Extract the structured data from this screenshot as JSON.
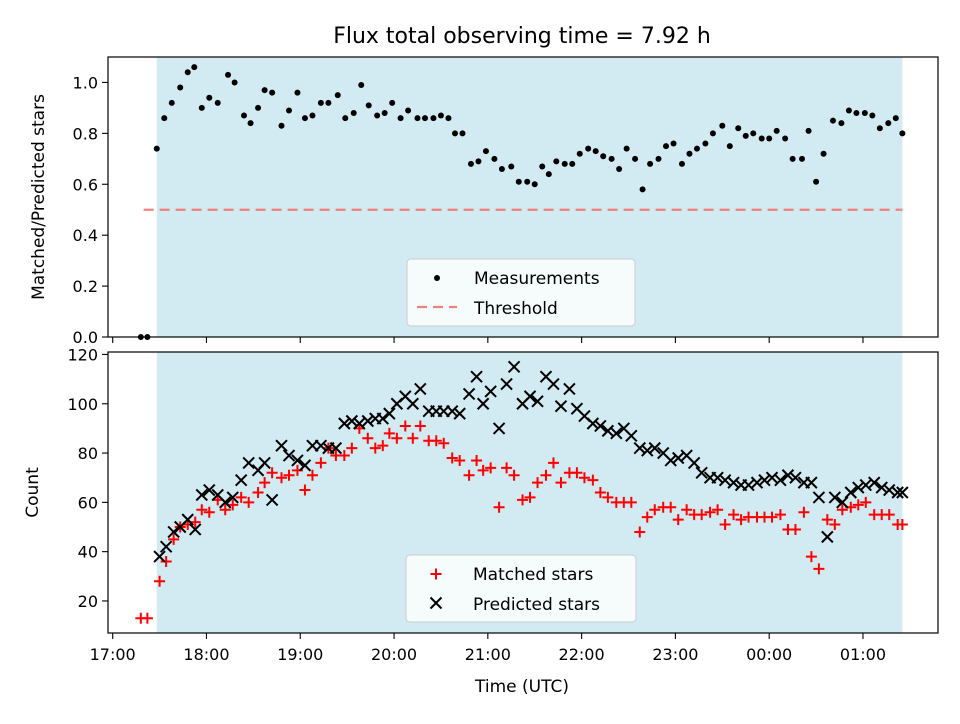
{
  "chart_data": {
    "title": "Flux total observing time = 7.92 h",
    "xlabel": "Time (UTC)",
    "x_ticks": [
      "17:00",
      "18:00",
      "19:00",
      "20:00",
      "21:00",
      "22:00",
      "23:00",
      "00:00",
      "01:00"
    ],
    "x_range_hours": [
      16.95,
      25.8
    ],
    "shaded_region_hours": [
      17.47,
      25.42
    ],
    "colors": {
      "shade": "#add8e6",
      "threshold": "#f08080",
      "matched": "#ff0000",
      "predicted": "#000000",
      "measure": "#000000"
    },
    "panels": [
      {
        "type": "scatter",
        "ylabel": "Matched/Predicted stars",
        "ylim": [
          0,
          1.1
        ],
        "y_ticks": [
          "0.0",
          "0.2",
          "0.4",
          "0.6",
          "0.8",
          "1.0"
        ],
        "y_tick_values": [
          0,
          0.2,
          0.4,
          0.6,
          0.8,
          1.0
        ],
        "threshold": 0.5,
        "threshold_x": [
          17.33,
          25.42
        ],
        "legend": [
          "Measurements",
          "Threshold"
        ],
        "legend_position": "lower-center",
        "series": [
          {
            "name": "Measurements",
            "x": [
              17.3,
              17.37,
              17.47,
              17.55,
              17.63,
              17.72,
              17.8,
              17.87,
              17.95,
              18.03,
              18.12,
              18.23,
              18.3,
              18.4,
              18.47,
              18.55,
              18.62,
              18.7,
              18.8,
              18.88,
              18.97,
              19.05,
              19.13,
              19.22,
              19.3,
              19.4,
              19.48,
              19.57,
              19.65,
              19.73,
              19.82,
              19.9,
              19.98,
              20.07,
              20.15,
              20.25,
              20.33,
              20.42,
              20.5,
              20.58,
              20.65,
              20.73,
              20.82,
              20.9,
              20.98,
              21.07,
              21.15,
              21.25,
              21.33,
              21.42,
              21.5,
              21.58,
              21.65,
              21.73,
              21.82,
              21.9,
              21.98,
              22.07,
              22.15,
              22.23,
              22.32,
              22.4,
              22.48,
              22.57,
              22.65,
              22.73,
              22.82,
              22.9,
              22.98,
              23.07,
              23.15,
              23.23,
              23.32,
              23.4,
              23.5,
              23.58,
              23.67,
              23.75,
              23.83,
              23.92,
              24.0,
              24.08,
              24.17,
              24.25,
              24.35,
              24.42,
              24.5,
              24.58,
              24.68,
              24.77,
              24.85,
              24.93,
              25.02,
              25.1,
              25.18,
              25.27,
              25.35,
              25.42
            ],
            "y": [
              0.0,
              0.0,
              0.74,
              0.86,
              0.92,
              0.98,
              1.04,
              1.06,
              0.9,
              0.94,
              0.92,
              1.03,
              1.0,
              0.87,
              0.84,
              0.9,
              0.97,
              0.96,
              0.83,
              0.89,
              0.96,
              0.86,
              0.87,
              0.92,
              0.92,
              0.95,
              0.86,
              0.88,
              0.99,
              0.91,
              0.87,
              0.88,
              0.92,
              0.86,
              0.89,
              0.86,
              0.86,
              0.86,
              0.87,
              0.86,
              0.8,
              0.8,
              0.68,
              0.69,
              0.73,
              0.7,
              0.66,
              0.67,
              0.61,
              0.61,
              0.6,
              0.67,
              0.64,
              0.69,
              0.68,
              0.68,
              0.72,
              0.74,
              0.73,
              0.71,
              0.7,
              0.66,
              0.74,
              0.7,
              0.58,
              0.68,
              0.7,
              0.75,
              0.76,
              0.68,
              0.72,
              0.74,
              0.76,
              0.8,
              0.83,
              0.75,
              0.82,
              0.79,
              0.8,
              0.78,
              0.78,
              0.81,
              0.78,
              0.7,
              0.7,
              0.81,
              0.61,
              0.72,
              0.85,
              0.84,
              0.89,
              0.88,
              0.88,
              0.87,
              0.82,
              0.84,
              0.86,
              0.8
            ]
          }
        ]
      },
      {
        "type": "scatter",
        "ylabel": "Count",
        "ylim": [
          7,
          121
        ],
        "y_ticks": [
          "20",
          "40",
          "60",
          "80",
          "100",
          "120"
        ],
        "y_tick_values": [
          20,
          40,
          60,
          80,
          100,
          120
        ],
        "legend": [
          "Matched stars",
          "Predicted stars"
        ],
        "legend_position": "lower-center",
        "series": [
          {
            "name": "Matched stars",
            "x": [
              17.3,
              17.37,
              17.5,
              17.57,
              17.65,
              17.72,
              17.8,
              17.88,
              17.95,
              18.03,
              18.12,
              18.2,
              18.28,
              18.37,
              18.45,
              18.55,
              18.62,
              18.7,
              18.8,
              18.88,
              18.97,
              19.05,
              19.13,
              19.22,
              19.3,
              19.38,
              19.47,
              19.55,
              19.63,
              19.72,
              19.8,
              19.88,
              19.95,
              20.03,
              20.12,
              20.2,
              20.28,
              20.37,
              20.45,
              20.53,
              20.62,
              20.7,
              20.8,
              20.88,
              20.95,
              21.03,
              21.12,
              21.2,
              21.28,
              21.37,
              21.45,
              21.53,
              21.62,
              21.7,
              21.78,
              21.87,
              21.95,
              22.03,
              22.12,
              22.2,
              22.28,
              22.37,
              22.45,
              22.53,
              22.62,
              22.7,
              22.78,
              22.87,
              22.95,
              23.03,
              23.12,
              23.2,
              23.28,
              23.37,
              23.45,
              23.53,
              23.62,
              23.7,
              23.78,
              23.87,
              23.95,
              24.03,
              24.12,
              24.2,
              24.28,
              24.37,
              24.45,
              24.53,
              24.62,
              24.7,
              24.78,
              24.87,
              24.95,
              25.03,
              25.12,
              25.2,
              25.28,
              25.37,
              25.42
            ],
            "y": [
              13,
              13,
              28,
              36,
              45,
              50,
              51,
              52,
              57,
              56,
              61,
              57,
              59,
              62,
              60,
              64,
              68,
              72,
              70,
              71,
              73,
              65,
              71,
              76,
              82,
              79,
              79,
              82,
              90,
              86,
              82,
              83,
              88,
              86,
              91,
              86,
              91,
              85,
              85,
              84,
              78,
              77,
              71,
              77,
              73,
              74,
              58,
              74,
              71,
              61,
              62,
              68,
              71,
              76,
              68,
              72,
              72,
              70,
              69,
              64,
              62,
              60,
              60,
              60,
              48,
              54,
              57,
              58,
              58,
              53,
              57,
              55,
              55,
              56,
              57,
              51,
              55,
              53,
              54,
              54,
              54,
              54,
              55,
              49,
              49,
              56,
              38,
              33,
              53,
              51,
              57,
              58,
              59,
              60,
              55,
              55,
              55,
              51,
              51
            ]
          },
          {
            "name": "Predicted stars",
            "x": [
              17.5,
              17.57,
              17.65,
              17.72,
              17.8,
              17.88,
              17.95,
              18.03,
              18.12,
              18.2,
              18.28,
              18.37,
              18.45,
              18.55,
              18.62,
              18.7,
              18.8,
              18.88,
              18.97,
              19.05,
              19.13,
              19.22,
              19.3,
              19.38,
              19.47,
              19.55,
              19.63,
              19.72,
              19.8,
              19.88,
              19.95,
              20.03,
              20.12,
              20.2,
              20.28,
              20.37,
              20.45,
              20.53,
              20.62,
              20.7,
              20.8,
              20.88,
              20.95,
              21.03,
              21.12,
              21.2,
              21.28,
              21.37,
              21.45,
              21.53,
              21.62,
              21.7,
              21.78,
              21.87,
              21.95,
              22.03,
              22.12,
              22.2,
              22.28,
              22.37,
              22.45,
              22.53,
              22.62,
              22.7,
              22.78,
              22.87,
              22.95,
              23.03,
              23.12,
              23.2,
              23.28,
              23.37,
              23.45,
              23.53,
              23.62,
              23.7,
              23.78,
              23.87,
              23.95,
              24.03,
              24.12,
              24.2,
              24.28,
              24.37,
              24.45,
              24.53,
              24.62,
              24.7,
              24.78,
              24.87,
              24.95,
              25.03,
              25.12,
              25.2,
              25.28,
              25.37,
              25.42
            ],
            "y": [
              38,
              42,
              48,
              50,
              53,
              49,
              63,
              65,
              63,
              60,
              62,
              69,
              76,
              73,
              76,
              61,
              83,
              79,
              77,
              75,
              83,
              83,
              82,
              82,
              92,
              93,
              92,
              93,
              94,
              94,
              96,
              100,
              103,
              100,
              106,
              97,
              97,
              97,
              97,
              96,
              104,
              111,
              100,
              105,
              90,
              108,
              115,
              100,
              103,
              101,
              111,
              108,
              99,
              106,
              98,
              95,
              92,
              91,
              89,
              88,
              90,
              87,
              82,
              81,
              82,
              80,
              77,
              78,
              79,
              76,
              72,
              70,
              70,
              69,
              68,
              67,
              67,
              68,
              69,
              70,
              69,
              71,
              70,
              68,
              68,
              62,
              46,
              62,
              60,
              64,
              66,
              67,
              68,
              66,
              65,
              64,
              64
            ]
          }
        ]
      }
    ]
  }
}
